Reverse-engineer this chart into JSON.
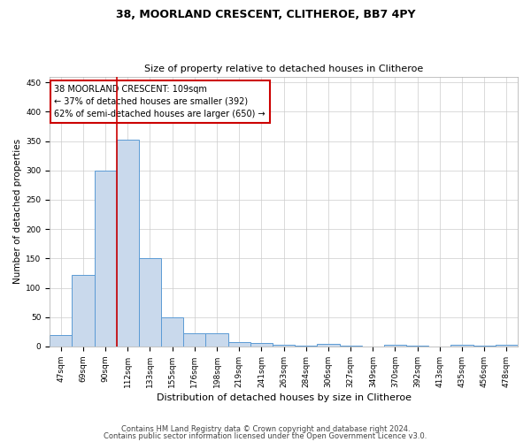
{
  "title1": "38, MOORLAND CRESCENT, CLITHEROE, BB7 4PY",
  "title2": "Size of property relative to detached houses in Clitheroe",
  "xlabel": "Distribution of detached houses by size in Clitheroe",
  "ylabel": "Number of detached properties",
  "categories": [
    "47sqm",
    "69sqm",
    "90sqm",
    "112sqm",
    "133sqm",
    "155sqm",
    "176sqm",
    "198sqm",
    "219sqm",
    "241sqm",
    "263sqm",
    "284sqm",
    "306sqm",
    "327sqm",
    "349sqm",
    "370sqm",
    "392sqm",
    "413sqm",
    "435sqm",
    "456sqm",
    "478sqm"
  ],
  "values": [
    20,
    122,
    299,
    352,
    150,
    50,
    22,
    22,
    8,
    6,
    3,
    2,
    5,
    1,
    0,
    3,
    1,
    0,
    3,
    1,
    3
  ],
  "bar_color": "#c9d9ec",
  "bar_edge_color": "#5b9bd5",
  "red_line_index": 3,
  "annotation_line1": "38 MOORLAND CRESCENT: 109sqm",
  "annotation_line2": "← 37% of detached houses are smaller (392)",
  "annotation_line3": "62% of semi-detached houses are larger (650) →",
  "annotation_box_color": "#ffffff",
  "annotation_box_edge_color": "#cc0000",
  "footer1": "Contains HM Land Registry data © Crown copyright and database right 2024.",
  "footer2": "Contains public sector information licensed under the Open Government Licence v3.0.",
  "ylim": [
    0,
    460
  ],
  "yticks": [
    0,
    50,
    100,
    150,
    200,
    250,
    300,
    350,
    400,
    450
  ],
  "background_color": "#ffffff",
  "grid_color": "#cccccc",
  "title1_fontsize": 9,
  "title2_fontsize": 8,
  "xlabel_fontsize": 8,
  "ylabel_fontsize": 7.5,
  "tick_fontsize": 6.5,
  "annotation_fontsize": 7,
  "footer_fontsize": 6
}
